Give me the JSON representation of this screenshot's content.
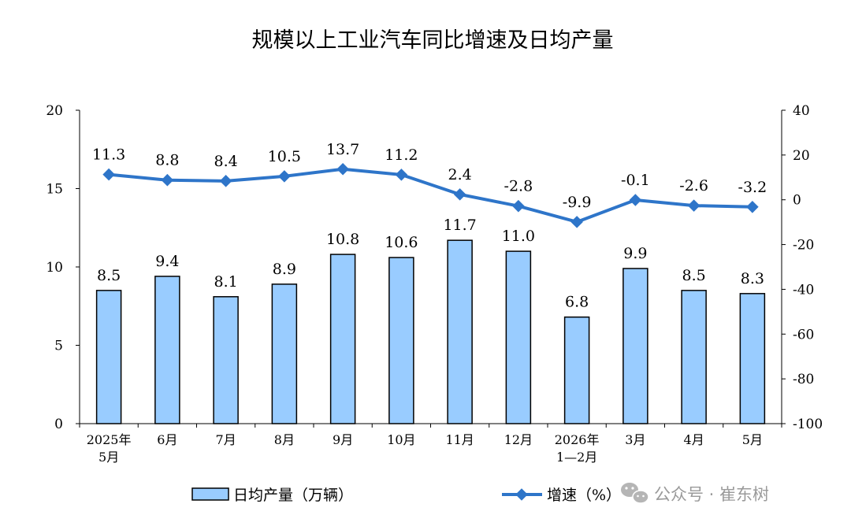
{
  "chart_data": {
    "type": "bar+line",
    "title": "规模以上工业汽车同比增速及日均产量",
    "categories": [
      [
        "2025年",
        "5月"
      ],
      [
        "6月"
      ],
      [
        "7月"
      ],
      [
        "8月"
      ],
      [
        "9月"
      ],
      [
        "10月"
      ],
      [
        "11月"
      ],
      [
        "12月"
      ],
      [
        "2026年",
        "1—2月"
      ],
      [
        "3月"
      ],
      [
        "4月"
      ],
      [
        "5月"
      ]
    ],
    "left_axis": {
      "ylim": [
        0,
        20
      ],
      "ticks": [
        "0",
        "5",
        "10",
        "15",
        "20"
      ]
    },
    "right_axis": {
      "ylim": [
        -100,
        40
      ],
      "ticks": [
        "-100",
        "-80",
        "-60",
        "-40",
        "-20",
        "0",
        "20",
        "40"
      ]
    },
    "series": [
      {
        "name": "日均产量（万辆）",
        "type": "bar",
        "axis": "left",
        "color": "#99ccff",
        "values": [
          8.5,
          9.4,
          8.1,
          8.9,
          10.8,
          10.6,
          11.7,
          11.0,
          6.8,
          9.9,
          8.5,
          8.3
        ],
        "labels": [
          "8.5",
          "9.4",
          "8.1",
          "8.9",
          "10.8",
          "10.6",
          "11.7",
          "11.0",
          "6.8",
          "9.9",
          "8.5",
          "8.3"
        ]
      },
      {
        "name": "增速（%）",
        "type": "line",
        "axis": "right",
        "color": "#2e75c9",
        "values": [
          11.3,
          8.8,
          8.4,
          10.5,
          13.7,
          11.2,
          2.4,
          -2.8,
          -9.9,
          -0.1,
          -2.6,
          -3.2
        ],
        "labels": [
          "11.3",
          "8.8",
          "8.4",
          "10.5",
          "13.7",
          "11.2",
          "2.4",
          "-2.8",
          "-9.9",
          "-0.1",
          "-2.6",
          "-3.2"
        ]
      }
    ],
    "legend_placement": "bottom",
    "grid": false
  },
  "watermark": {
    "icon": "wechat-icon",
    "text": "公众号 · 崔东树"
  }
}
